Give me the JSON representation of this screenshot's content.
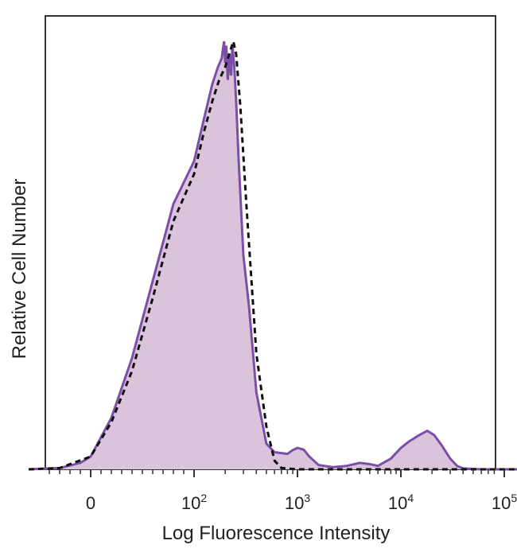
{
  "chart_data": {
    "type": "area",
    "xlabel": "Log Fluorescence Intensity",
    "ylabel": "Relative Cell Number",
    "x_scale": "biexponential",
    "x_ticks": [
      {
        "value": 0,
        "base": "0",
        "exp": ""
      },
      {
        "value": 100,
        "base": "10",
        "exp": "2"
      },
      {
        "value": 1000,
        "base": "10",
        "exp": "3"
      },
      {
        "value": 10000,
        "base": "10",
        "exp": "4"
      },
      {
        "value": 100000,
        "base": "10",
        "exp": "5"
      }
    ],
    "xlim": [
      -60,
      220000
    ],
    "ylim": [
      0,
      100
    ],
    "grid": false,
    "legend": "none",
    "colors": {
      "stained_line": "#7b4fa6",
      "stained_fill": "#dcc3dc",
      "control_line": "#111111",
      "frame": "#333333"
    },
    "series": [
      {
        "style": "solid-filled",
        "x": [
          -60,
          -30,
          -10,
          0,
          20,
          40,
          60,
          80,
          100,
          125,
          150,
          170,
          185,
          195,
          200,
          205,
          212,
          220,
          228,
          235,
          245,
          255,
          270,
          300,
          340,
          400,
          500,
          600,
          700,
          800,
          900,
          1000,
          1150,
          1300,
          1600,
          2200,
          3000,
          4000,
          5000,
          6000,
          8000,
          10000,
          12000,
          15000,
          18000,
          21000,
          25000,
          30000,
          35000,
          40000,
          60000,
          100000,
          150000,
          220000
        ],
        "y": [
          0,
          0.3,
          1.5,
          3,
          12,
          26,
          44,
          62,
          72,
          82,
          90,
          94,
          96,
          100,
          95,
          99,
          91,
          97,
          92,
          99,
          94,
          86,
          72,
          50,
          38,
          18,
          6,
          4,
          3.8,
          3.6,
          4.5,
          5,
          4.6,
          3,
          1,
          0.5,
          0.8,
          1.5,
          1.2,
          0.8,
          2.5,
          5,
          6.5,
          8,
          9,
          8,
          5.5,
          2.5,
          0.8,
          0.2,
          0,
          0,
          0,
          0
        ]
      },
      {
        "style": "dashed",
        "x": [
          -60,
          -30,
          0,
          20,
          40,
          60,
          80,
          100,
          125,
          150,
          175,
          200,
          225,
          240,
          255,
          280,
          320,
          400,
          500,
          600,
          700,
          1000,
          2000,
          5000,
          10000,
          50000,
          100000,
          220000
        ],
        "y": [
          0,
          0.3,
          3,
          11,
          23,
          40,
          58,
          69,
          79,
          86,
          91,
          94,
          98,
          100,
          97,
          85,
          62,
          27,
          10,
          2,
          0.3,
          0,
          0,
          0,
          0,
          0,
          0,
          0
        ]
      }
    ]
  }
}
